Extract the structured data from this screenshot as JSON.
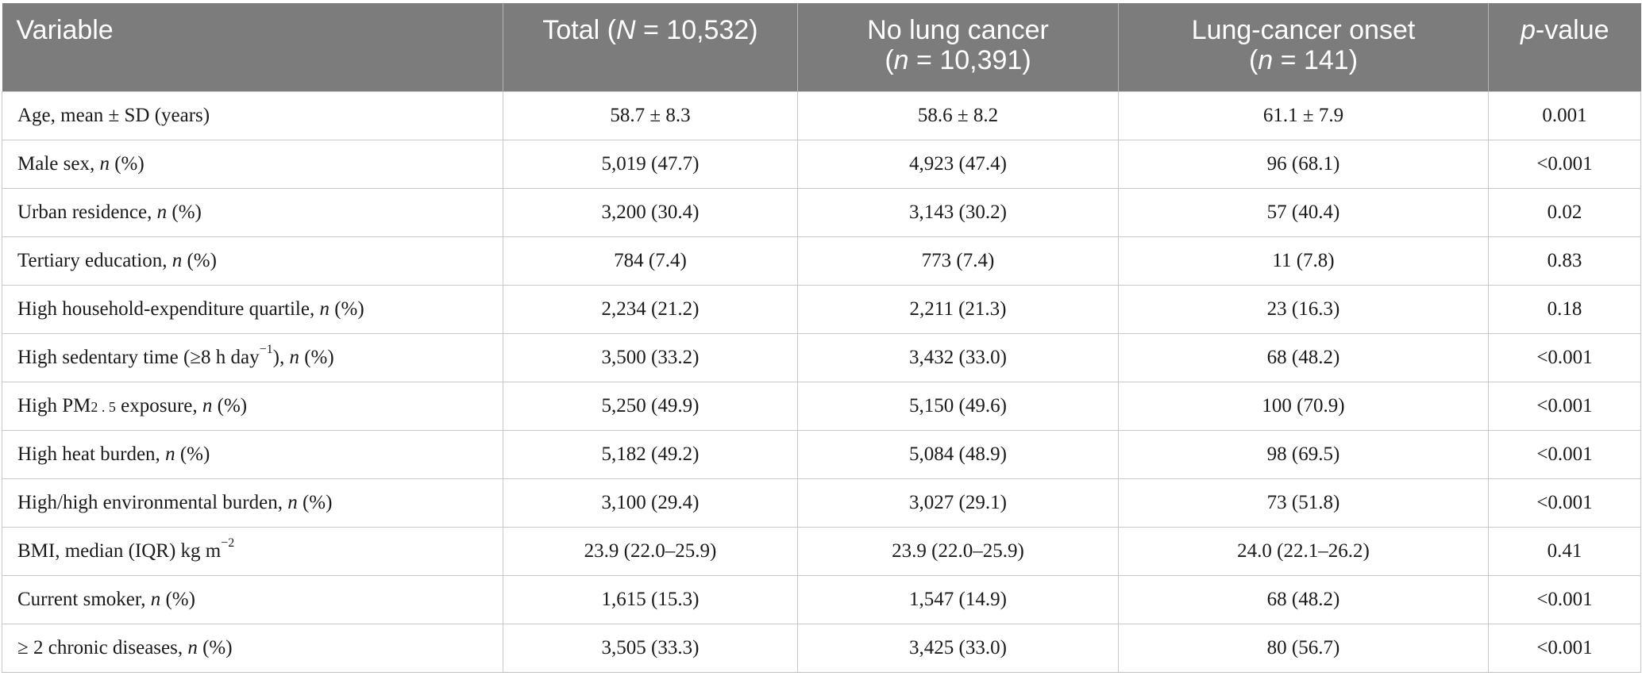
{
  "table": {
    "headers": {
      "variable": "Variable",
      "total_prefix": "Total (",
      "total_n": "N",
      "total_suffix": " = 10,532)",
      "no_lung_label": "No lung cancer",
      "no_lung_n": "n",
      "no_lung_suffix": " = 10,391)",
      "onset_label": "Lung-cancer onset",
      "onset_n": "n",
      "onset_suffix": " = 141)",
      "open_paren": "(",
      "p_italic": "p",
      "p_suffix": "-value"
    },
    "n_marker": "n",
    "rows": [
      {
        "pre": "Age, mean ± SD (years)",
        "total": "58.7 ± 8.3",
        "no_lung": "58.6 ± 8.2",
        "onset": "61.1 ± 7.9",
        "p": "0.001"
      },
      {
        "pre": "Male sex, ",
        "post": " (%)",
        "total": "5,019 (47.7)",
        "no_lung": "4,923 (47.4)",
        "onset": "96 (68.1)",
        "p": "<0.001"
      },
      {
        "pre": "Urban residence, ",
        "post": " (%)",
        "total": "3,200 (30.4)",
        "no_lung": "3,143 (30.2)",
        "onset": "57 (40.4)",
        "p": "0.02"
      },
      {
        "pre": "Tertiary education, ",
        "post": " (%)",
        "total": "784 (7.4)",
        "no_lung": "773 (7.4)",
        "onset": "11 (7.8)",
        "p": "0.83"
      },
      {
        "pre": "High household-expenditure quartile, ",
        "post": " (%)",
        "total": "2,234 (21.2)",
        "no_lung": "2,211 (21.3)",
        "onset": "23 (16.3)",
        "p": "0.18"
      },
      {
        "pre": "High sedentary time (≥8 h day",
        "sup": "−1",
        "mid": "), ",
        "post": " (%)",
        "total": "3,500 (33.2)",
        "no_lung": "3,432 (33.0)",
        "onset": "68 (48.2)",
        "p": "<0.001"
      },
      {
        "pre": "High PM",
        "subscript": "2 . 5",
        "mid": " exposure, ",
        "post": " (%)",
        "total": "5,250 (49.9)",
        "no_lung": "5,150 (49.6)",
        "onset": "100 (70.9)",
        "p": "<0.001"
      },
      {
        "pre": "High heat burden, ",
        "post": " (%)",
        "total": "5,182 (49.2)",
        "no_lung": "5,084 (48.9)",
        "onset": "98 (69.5)",
        "p": "<0.001"
      },
      {
        "pre": "High/high environmental burden, ",
        "post": " (%)",
        "total": "3,100 (29.4)",
        "no_lung": "3,027 (29.1)",
        "onset": "73 (51.8)",
        "p": "<0.001"
      },
      {
        "pre": "BMI, median (IQR) kg m",
        "sup": "−2",
        "total": "23.9 (22.0–25.9)",
        "no_lung": "23.9 (22.0–25.9)",
        "onset": "24.0 (22.1–26.2)",
        "p": "0.41"
      },
      {
        "pre": "Current smoker, ",
        "post": " (%)",
        "total": "1,615 (15.3)",
        "no_lung": "1,547 (14.9)",
        "onset": "68 (48.2)",
        "p": "<0.001"
      },
      {
        "pre": "≥ 2 chronic diseases, ",
        "post": " (%)",
        "total": "3,505 (33.3)",
        "no_lung": "3,425 (33.0)",
        "onset": "80 (56.7)",
        "p": "<0.001"
      }
    ]
  }
}
